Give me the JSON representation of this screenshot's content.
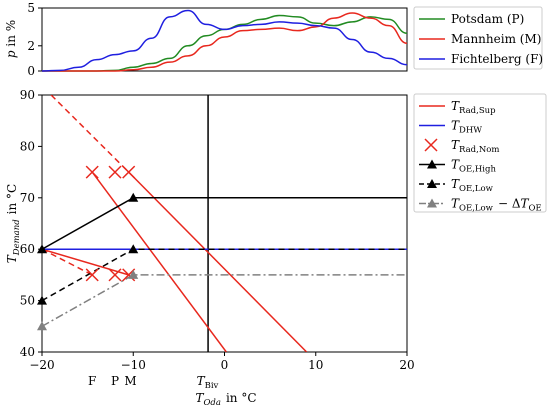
{
  "chart_data": [
    {
      "type": "line",
      "ylabel": "p in %",
      "xlim": [
        -20,
        20
      ],
      "ylim": [
        0,
        5
      ],
      "yticks": [
        0,
        2,
        5
      ],
      "legend_position": "right",
      "series": [
        {
          "name": "Potsdam (P)",
          "color": "#228b22",
          "x": [
            -20,
            -14,
            -12,
            -10,
            -8,
            -6,
            -4,
            -2,
            0,
            2,
            4,
            6,
            8,
            10,
            12,
            14,
            16,
            18,
            20
          ],
          "y": [
            0,
            0,
            0.05,
            0.3,
            0.6,
            1.0,
            2.0,
            2.8,
            3.3,
            3.7,
            4.1,
            4.4,
            4.3,
            3.8,
            3.6,
            3.9,
            4.3,
            4.1,
            3.0
          ]
        },
        {
          "name": "Mannheim (M)",
          "color": "#e8281e",
          "x": [
            -20,
            -14,
            -12,
            -10,
            -8,
            -6,
            -4,
            -2,
            0,
            2,
            4,
            6,
            8,
            10,
            12,
            14,
            16,
            18,
            20
          ],
          "y": [
            0,
            0,
            0,
            0.1,
            0.3,
            0.7,
            1.2,
            2.0,
            2.7,
            3.2,
            3.3,
            3.4,
            3.2,
            3.5,
            4.2,
            4.6,
            4.2,
            3.6,
            2.2
          ]
        },
        {
          "name": "Fichtelberg (F)",
          "color": "#1f1fe0",
          "x": [
            -20,
            -18,
            -16,
            -14,
            -12,
            -10,
            -8,
            -6,
            -4,
            -2,
            0,
            2,
            4,
            6,
            8,
            10,
            12,
            14,
            16,
            18,
            20
          ],
          "y": [
            0,
            0.05,
            0.3,
            0.9,
            1.3,
            1.6,
            2.6,
            4.3,
            4.8,
            3.7,
            3.3,
            3.6,
            3.7,
            3.9,
            3.8,
            3.6,
            3.4,
            2.5,
            1.5,
            1.0,
            0.5
          ]
        }
      ]
    },
    {
      "type": "line",
      "xlabel": "T_Oda in °C",
      "ylabel": "T_Demand in °C",
      "xlim": [
        -20,
        20
      ],
      "ylim": [
        40,
        90
      ],
      "xticks": [
        -20,
        -10,
        0,
        10,
        20
      ],
      "yticks": [
        40,
        50,
        60,
        70,
        80,
        90
      ],
      "extra_xtick_labels": [
        {
          "label": "F",
          "x": -14.5
        },
        {
          "label": "P",
          "x": -12
        },
        {
          "label": "M",
          "x": -10.3
        },
        {
          "label": "T_Biv",
          "x": -1.8
        }
      ],
      "legend_position": "right",
      "legend": [
        {
          "label": "T_Rad,Sup",
          "style": "line"
        },
        {
          "label": "T_DHW",
          "style": "line"
        },
        {
          "label": "T_Rad,Nom",
          "style": "x-marker"
        },
        {
          "label": "T_OE,High",
          "style": "line-triangle"
        },
        {
          "label": "T_OE,Low",
          "style": "dashed-triangle"
        },
        {
          "label": "T_OE,Low − ΔT_OE",
          "style": "dashdot-triangle"
        }
      ],
      "series": [
        {
          "name": "T_Rad,Sup",
          "color": "#e8281e",
          "style": "solid",
          "x": [
            -10.5,
            9
          ],
          "y": [
            75,
            40
          ]
        },
        {
          "name": "T_Rad,Sup",
          "color": "#e8281e",
          "style": "solid",
          "x": [
            -20,
            -10.5
          ],
          "y": [
            60,
            55
          ]
        },
        {
          "name": "T_Rad,Sup",
          "color": "#e8281e",
          "style": "dashed",
          "x": [
            -19,
            -10.5
          ],
          "y": [
            90,
            75
          ]
        },
        {
          "name": "T_Rad,Sup",
          "color": "#e8281e",
          "style": "solid",
          "x": [
            -14.5,
            0.2
          ],
          "y": [
            75,
            40
          ]
        },
        {
          "name": "T_Rad,Sup",
          "color": "#e8281e",
          "style": "dashed",
          "x": [
            -20,
            -14.5
          ],
          "y": [
            60,
            55
          ]
        },
        {
          "name": "T_DHW",
          "color": "#1f1fe0",
          "style": "solid",
          "x": [
            -20,
            20
          ],
          "y": [
            60,
            60
          ]
        },
        {
          "name": "T_Rad,Nom",
          "color": "#e8281e",
          "style": "x-marker",
          "x": [
            -14.5,
            -12,
            -10.5,
            -14.5,
            -12,
            -10.5
          ],
          "y": [
            75,
            75,
            75,
            55,
            55,
            55
          ]
        },
        {
          "name": "T_OE,High",
          "color": "#000000",
          "style": "solid",
          "x": [
            -20,
            -10,
            20
          ],
          "y": [
            60,
            70,
            70
          ]
        },
        {
          "name": "T_OE,Low",
          "color": "#000000",
          "style": "dashed",
          "x": [
            -20,
            -10,
            20
          ],
          "y": [
            50,
            60,
            60
          ]
        },
        {
          "name": "T_OE,Low − ΔT_OE",
          "color": "#808080",
          "style": "dashdot",
          "x": [
            -20,
            -10,
            20
          ],
          "y": [
            45,
            55,
            55
          ]
        }
      ],
      "vlines": [
        {
          "x": -1.8,
          "color": "#000000"
        }
      ]
    }
  ]
}
